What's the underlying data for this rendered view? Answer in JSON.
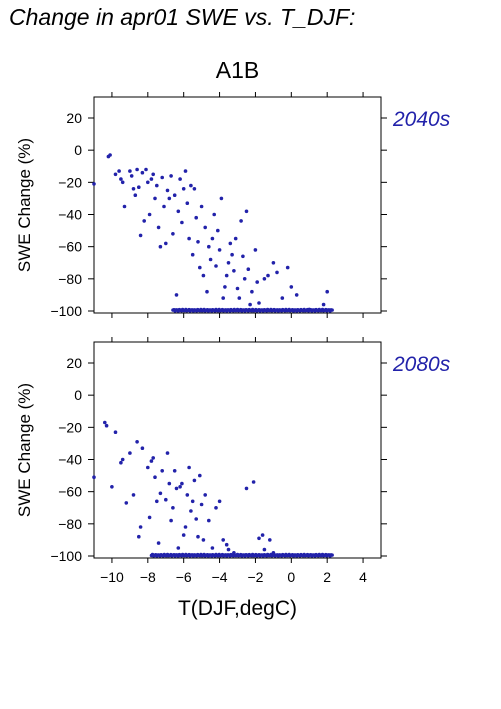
{
  "title": "Change in apr01 SWE vs. T_DJF:",
  "scenario": "A1B",
  "chart_data": [
    {
      "type": "scatter",
      "panel_label": "2040s",
      "ylabel": "SWE Change (%)",
      "xlabel": "T(DJF,degC)",
      "xlim": [
        -11,
        5
      ],
      "ylim": [
        -100,
        35
      ],
      "xticks": [
        -10,
        -8,
        -6,
        -4,
        -2,
        0,
        2,
        4
      ],
      "yticks": [
        20,
        0,
        -20,
        -40,
        -60,
        -80,
        -100
      ],
      "color": "#2222aa",
      "points": [
        [
          -11.0,
          -21
        ],
        [
          -10.2,
          -4
        ],
        [
          -10.1,
          -3
        ],
        [
          -9.8,
          -15
        ],
        [
          -9.6,
          -13
        ],
        [
          -9.5,
          -18
        ],
        [
          -9.4,
          -20
        ],
        [
          -9.3,
          -35
        ],
        [
          -9.0,
          -13
        ],
        [
          -8.9,
          -16
        ],
        [
          -8.8,
          -24
        ],
        [
          -8.7,
          -28
        ],
        [
          -8.6,
          -12
        ],
        [
          -8.5,
          -23
        ],
        [
          -8.4,
          -53
        ],
        [
          -8.3,
          -14
        ],
        [
          -8.2,
          -44
        ],
        [
          -8.1,
          -12
        ],
        [
          -8.0,
          -20
        ],
        [
          -7.9,
          -40
        ],
        [
          -7.8,
          -18
        ],
        [
          -7.7,
          -15
        ],
        [
          -7.6,
          -30
        ],
        [
          -7.5,
          -22
        ],
        [
          -7.4,
          -48
        ],
        [
          -7.3,
          -60
        ],
        [
          -7.2,
          -17
        ],
        [
          -7.1,
          -35
        ],
        [
          -7.0,
          -58
        ],
        [
          -6.9,
          -25
        ],
        [
          -6.8,
          -30
        ],
        [
          -6.7,
          -16
        ],
        [
          -6.6,
          -52
        ],
        [
          -6.5,
          -28
        ],
        [
          -6.4,
          -90
        ],
        [
          -6.3,
          -38
        ],
        [
          -6.2,
          -18
        ],
        [
          -6.1,
          -45
        ],
        [
          -6.0,
          -24
        ],
        [
          -5.9,
          -13
        ],
        [
          -5.8,
          -33
        ],
        [
          -5.7,
          -55
        ],
        [
          -5.6,
          -22
        ],
        [
          -5.5,
          -65
        ],
        [
          -5.4,
          -24
        ],
        [
          -5.3,
          -42
        ],
        [
          -5.2,
          -57
        ],
        [
          -5.1,
          -73
        ],
        [
          -5.0,
          -35
        ],
        [
          -4.9,
          -78
        ],
        [
          -4.8,
          -48
        ],
        [
          -4.7,
          -88
        ],
        [
          -4.6,
          -60
        ],
        [
          -4.5,
          -68
        ],
        [
          -4.4,
          -55
        ],
        [
          -4.3,
          -40
        ],
        [
          -4.2,
          -72
        ],
        [
          -4.1,
          -50
        ],
        [
          -4.0,
          -62
        ],
        [
          -3.9,
          -30
        ],
        [
          -3.8,
          -92
        ],
        [
          -3.7,
          -85
        ],
        [
          -3.6,
          -78
        ],
        [
          -3.5,
          -70
        ],
        [
          -3.4,
          -58
        ],
        [
          -3.3,
          -65
        ],
        [
          -3.2,
          -75
        ],
        [
          -3.1,
          -55
        ],
        [
          -3.0,
          -86
        ],
        [
          -2.9,
          -92
        ],
        [
          -2.8,
          -44
        ],
        [
          -2.7,
          -66
        ],
        [
          -2.6,
          -80
        ],
        [
          -2.5,
          -38
        ],
        [
          -2.4,
          -74
        ],
        [
          -2.3,
          -96
        ],
        [
          -2.2,
          -88
        ],
        [
          -2.0,
          -62
        ],
        [
          -1.9,
          -82
        ],
        [
          -1.8,
          -95
        ],
        [
          -1.5,
          -80
        ],
        [
          -1.3,
          -78
        ],
        [
          -1.0,
          -70
        ],
        [
          -0.8,
          -76
        ],
        [
          -0.5,
          -92
        ],
        [
          -0.2,
          -73
        ],
        [
          0.0,
          -85
        ],
        [
          0.3,
          -90
        ],
        [
          1.8,
          -96
        ],
        [
          2.0,
          -88
        ],
        [
          1.0,
          -99
        ]
      ],
      "floor_cluster": {
        "y": -100,
        "x_from": -6.6,
        "x_to": 2.3
      }
    },
    {
      "type": "scatter",
      "panel_label": "2080s",
      "ylabel": "SWE Change (%)",
      "xlabel": "T(DJF,degC)",
      "xlim": [
        -11,
        5
      ],
      "ylim": [
        -100,
        35
      ],
      "xticks": [
        -10,
        -8,
        -6,
        -4,
        -2,
        0,
        2,
        4
      ],
      "yticks": [
        20,
        0,
        -20,
        -40,
        -60,
        -80,
        -100
      ],
      "color": "#2222aa",
      "points": [
        [
          -11.0,
          -51
        ],
        [
          -10.4,
          -17
        ],
        [
          -10.3,
          -19
        ],
        [
          -10.0,
          -57
        ],
        [
          -9.8,
          -23
        ],
        [
          -9.5,
          -42
        ],
        [
          -9.4,
          -40
        ],
        [
          -9.2,
          -67
        ],
        [
          -9.0,
          -36
        ],
        [
          -8.8,
          -62
        ],
        [
          -8.6,
          -29
        ],
        [
          -8.5,
          -88
        ],
        [
          -8.4,
          -82
        ],
        [
          -8.3,
          -33
        ],
        [
          -8.0,
          -45
        ],
        [
          -7.9,
          -76
        ],
        [
          -7.8,
          -41
        ],
        [
          -7.7,
          -39
        ],
        [
          -7.6,
          -51
        ],
        [
          -7.5,
          -66
        ],
        [
          -7.4,
          -92
        ],
        [
          -7.3,
          -61
        ],
        [
          -7.2,
          -47
        ],
        [
          -7.0,
          -65
        ],
        [
          -6.9,
          -36
        ],
        [
          -6.8,
          -55
        ],
        [
          -6.7,
          -78
        ],
        [
          -6.6,
          -70
        ],
        [
          -6.5,
          -47
        ],
        [
          -6.4,
          -58
        ],
        [
          -6.3,
          -95
        ],
        [
          -6.2,
          -57
        ],
        [
          -6.1,
          -55
        ],
        [
          -6.0,
          -87
        ],
        [
          -5.9,
          -82
        ],
        [
          -5.8,
          -62
        ],
        [
          -5.7,
          -45
        ],
        [
          -5.6,
          -72
        ],
        [
          -5.5,
          -66
        ],
        [
          -5.4,
          -53
        ],
        [
          -5.3,
          -77
        ],
        [
          -5.2,
          -88
        ],
        [
          -5.1,
          -50
        ],
        [
          -5.0,
          -68
        ],
        [
          -4.9,
          -90
        ],
        [
          -4.8,
          -62
        ],
        [
          -4.6,
          -78
        ],
        [
          -4.4,
          -95
        ],
        [
          -4.2,
          -70
        ],
        [
          -4.0,
          -66
        ],
        [
          -3.8,
          -90
        ],
        [
          -3.6,
          -93
        ],
        [
          -3.5,
          -96
        ],
        [
          -3.2,
          -98
        ],
        [
          -2.5,
          -58
        ],
        [
          -2.1,
          -54
        ],
        [
          -1.8,
          -89
        ],
        [
          -1.6,
          -87
        ],
        [
          -1.5,
          -96
        ],
        [
          -1.2,
          -90
        ],
        [
          -1.0,
          -98
        ]
      ],
      "floor_cluster": {
        "y": -100,
        "x_from": -7.8,
        "x_to": 2.3
      }
    }
  ]
}
